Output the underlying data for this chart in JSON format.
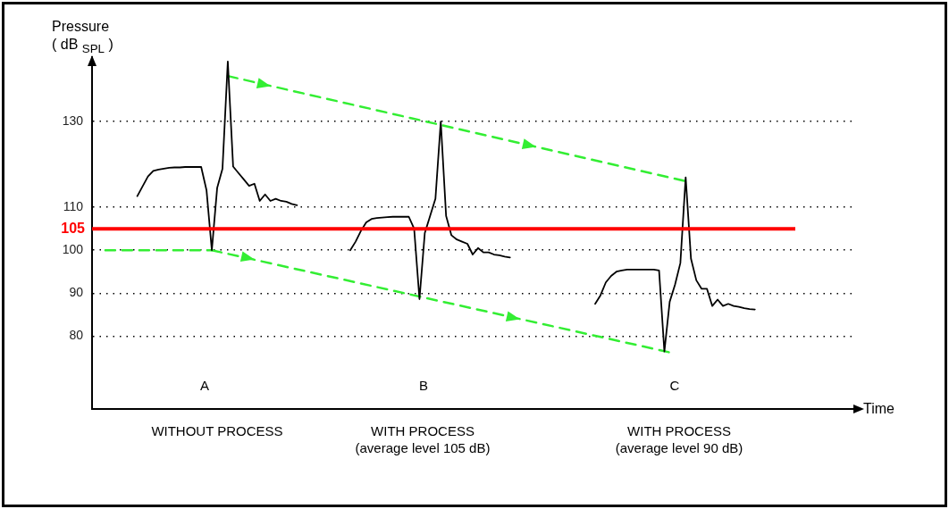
{
  "chart_data": {
    "type": "line",
    "ylabel": "Pressure\n( dB $_{SPL}$ )",
    "xlabel": "Time",
    "categories": [
      null,
      null,
      null,
      null,
      null,
      null,
      null,
      null,
      null,
      null,
      null,
      null,
      null,
      null,
      null,
      null,
      null,
      null,
      null,
      null,
      null,
      null,
      null,
      null,
      null,
      null,
      null,
      null,
      null,
      null,
      null,
      null,
      null,
      null,
      null,
      null,
      null,
      null,
      null,
      null,
      null,
      null,
      null,
      null,
      null,
      null,
      null,
      null,
      null,
      null,
      null,
      null,
      null,
      null,
      null,
      null,
      null,
      null,
      null,
      null,
      null,
      null,
      null,
      null,
      null,
      null,
      null,
      null,
      null,
      null,
      null,
      null,
      null,
      null,
      null,
      null,
      null,
      null,
      null,
      null,
      null,
      null,
      null,
      null,
      null,
      null,
      null,
      null,
      null,
      null,
      null,
      null,
      null,
      null,
      null,
      null,
      null,
      null,
      null,
      null,
      null,
      null,
      null,
      null,
      null,
      null,
      null,
      null,
      null,
      null,
      null,
      null,
      null,
      null,
      null,
      null,
      null,
      null,
      null,
      null,
      null,
      null,
      null,
      null,
      null,
      null,
      null,
      null,
      null,
      null,
      null,
      null,
      null,
      null,
      null,
      null,
      null,
      null,
      null,
      null,
      null,
      null,
      null
    ],
    "series": [
      {
        "color": "#000000",
        "values": [
          null,
          null,
          null,
          null,
          null,
          null,
          null,
          null,
          112.6,
          114.9,
          117.2,
          118.5,
          118.8,
          119,
          119.2,
          119.3,
          119.3,
          119.4,
          119.4,
          119.4,
          119.4,
          114,
          100,
          114.5,
          119,
          144,
          119.5,
          118,
          116.5,
          115,
          115.5,
          111.5,
          113,
          111.5,
          112,
          111.5,
          111.3,
          110.8,
          110.5,
          null,
          null,
          null,
          null,
          null,
          null,
          null,
          null,
          null,
          null,
          null,
          null,
          null,
          null,
          null,
          null,
          null,
          null,
          null,
          null,
          null,
          null,
          null,
          null,
          null,
          null,
          null,
          null,
          null,
          null,
          null,
          null,
          null,
          null,
          null,
          null,
          null,
          null,
          null,
          null,
          null,
          null,
          null,
          null,
          null,
          null,
          null,
          null,
          null,
          null,
          null,
          null,
          null,
          null,
          null,
          null,
          null,
          null,
          null,
          null,
          null,
          null,
          null,
          null,
          null,
          null,
          null,
          null,
          null,
          null,
          null,
          null,
          null,
          null,
          null,
          null,
          null,
          null,
          null,
          null,
          null,
          null,
          null,
          null,
          null,
          null,
          null,
          null,
          null,
          null,
          null,
          null,
          null,
          null,
          null,
          null,
          null,
          null,
          null,
          null,
          null,
          null,
          null,
          null
        ]
      },
      {
        "color": "#000000",
        "values": [
          null,
          null,
          null,
          null,
          null,
          null,
          null,
          null,
          null,
          null,
          null,
          null,
          null,
          null,
          null,
          null,
          null,
          null,
          null,
          null,
          null,
          null,
          null,
          null,
          null,
          null,
          null,
          null,
          null,
          null,
          null,
          null,
          null,
          null,
          null,
          null,
          null,
          null,
          null,
          null,
          null,
          null,
          null,
          null,
          null,
          null,
          null,
          null,
          100,
          102,
          104.5,
          106.5,
          107.3,
          107.5,
          107.6,
          107.7,
          107.8,
          107.8,
          107.8,
          107.8,
          105,
          88.6,
          104,
          108,
          112,
          130,
          108,
          103.5,
          102.5,
          102,
          101.5,
          99,
          100.5,
          99.5,
          99.5,
          99,
          98.8,
          98.5,
          98.3,
          null,
          null,
          null,
          null,
          null,
          null,
          null,
          null,
          null,
          null,
          null,
          null,
          null,
          null,
          null,
          null,
          null,
          null,
          null,
          null,
          null,
          null,
          null,
          null,
          null,
          null,
          null,
          null,
          null,
          null,
          null,
          null,
          null,
          null,
          null,
          null,
          null,
          null,
          null,
          null,
          null,
          null,
          null,
          null,
          null,
          null,
          null,
          null,
          null,
          null,
          null,
          null,
          null,
          null,
          null,
          null,
          null,
          null,
          null,
          null,
          null,
          null,
          null,
          null
        ]
      },
      {
        "color": "#000000",
        "values": [
          null,
          null,
          null,
          null,
          null,
          null,
          null,
          null,
          null,
          null,
          null,
          null,
          null,
          null,
          null,
          null,
          null,
          null,
          null,
          null,
          null,
          null,
          null,
          null,
          null,
          null,
          null,
          null,
          null,
          null,
          null,
          null,
          null,
          null,
          null,
          null,
          null,
          null,
          null,
          null,
          null,
          null,
          null,
          null,
          null,
          null,
          null,
          null,
          null,
          null,
          null,
          null,
          null,
          null,
          null,
          null,
          null,
          null,
          null,
          null,
          null,
          null,
          null,
          null,
          null,
          null,
          null,
          null,
          null,
          null,
          null,
          null,
          null,
          null,
          null,
          null,
          null,
          null,
          null,
          null,
          null,
          null,
          null,
          null,
          null,
          null,
          null,
          null,
          null,
          null,
          null,
          null,
          null,
          null,
          87.5,
          89.5,
          92.5,
          94,
          95,
          95.3,
          95.5,
          95.5,
          95.5,
          95.5,
          95.5,
          95.5,
          95.3,
          76.4,
          88,
          92,
          97,
          117,
          98,
          93,
          91,
          91,
          87,
          88.5,
          87,
          87.5,
          87,
          86.8,
          86.5,
          86.3,
          86.2,
          null,
          null,
          null,
          null,
          null,
          null,
          null,
          null,
          null,
          null,
          null,
          null,
          null,
          null,
          null,
          null,
          null,
          null
        ]
      },
      {
        "color": "#33ee33",
        "line_style": "dashed",
        "values": [
          null,
          null,
          null,
          null,
          null,
          null,
          null,
          null,
          null,
          null,
          null,
          null,
          null,
          null,
          null,
          null,
          null,
          null,
          null,
          null,
          null,
          null,
          null,
          null,
          null,
          140.6,
          null,
          null,
          null,
          null,
          null,
          null,
          null,
          null,
          null,
          null,
          null,
          null,
          null,
          null,
          null,
          null,
          null,
          null,
          null,
          null,
          null,
          null,
          null,
          null,
          null,
          null,
          null,
          null,
          null,
          null,
          null,
          null,
          null,
          null,
          null,
          null,
          null,
          null,
          null,
          null,
          null,
          null,
          null,
          null,
          null,
          null,
          null,
          null,
          null,
          null,
          null,
          null,
          null,
          null,
          null,
          null,
          null,
          null,
          null,
          null,
          null,
          null,
          null,
          null,
          null,
          null,
          null,
          null,
          null,
          null,
          null,
          null,
          null,
          null,
          null,
          null,
          null,
          null,
          null,
          null,
          null,
          null,
          null,
          null,
          null,
          116.1,
          null,
          null,
          null,
          null,
          null,
          null,
          null,
          null,
          null,
          null,
          null,
          null,
          null,
          null,
          null,
          null,
          null,
          null,
          null,
          null,
          null,
          null,
          null,
          null,
          null,
          null,
          null,
          null,
          null,
          null,
          null
        ]
      },
      {
        "color": "#33ee33",
        "line_style": "dashed",
        "values": [
          null,
          null,
          100,
          null,
          null,
          null,
          null,
          null,
          null,
          null,
          null,
          null,
          null,
          null,
          null,
          null,
          null,
          null,
          null,
          null,
          null,
          null,
          100,
          null,
          null,
          null,
          null,
          null,
          null,
          null,
          null,
          null,
          null,
          null,
          null,
          null,
          null,
          null,
          null,
          null,
          null,
          null,
          null,
          null,
          null,
          null,
          null,
          null,
          null,
          null,
          null,
          null,
          null,
          null,
          null,
          null,
          null,
          null,
          null,
          null,
          null,
          null,
          null,
          null,
          null,
          null,
          null,
          null,
          null,
          null,
          null,
          null,
          null,
          null,
          null,
          null,
          null,
          null,
          null,
          null,
          null,
          null,
          null,
          null,
          null,
          null,
          null,
          null,
          null,
          null,
          null,
          null,
          null,
          null,
          null,
          null,
          null,
          null,
          null,
          null,
          null,
          null,
          null,
          null,
          null,
          null,
          null,
          null,
          76.2,
          null,
          null,
          null,
          null,
          null,
          null,
          null,
          null,
          null,
          null,
          null,
          null,
          null,
          null,
          null,
          null,
          null,
          null,
          null,
          null,
          null,
          null,
          null,
          null,
          null,
          null,
          null,
          null,
          null,
          null,
          null,
          null,
          null,
          null
        ]
      }
    ],
    "ylim": [
      63,
      145
    ],
    "yticks": [
      80,
      90,
      100,
      110,
      130
    ],
    "grid": "y",
    "tick_labels": "y",
    "marker": "none",
    "line_style": "solid",
    "ref_lines": [
      {
        "axis": "y",
        "value": 105,
        "label": "105",
        "color": "#ff0000"
      }
    ],
    "annotations": [
      "A",
      "B",
      "C",
      "WITHOUT PROCESS",
      "WITH PROCESS\n(average level 105 dB)",
      "WITH PROCESS\n(average level 90 dB)"
    ]
  }
}
